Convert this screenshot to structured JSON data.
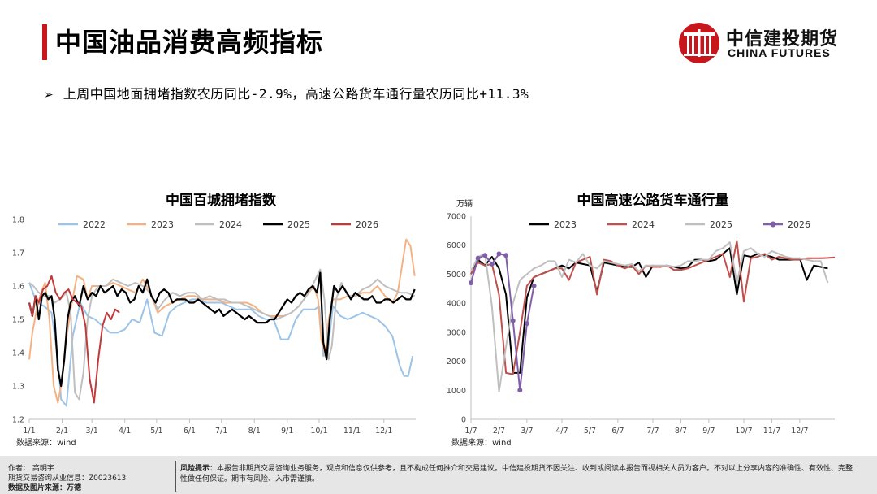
{
  "header": {
    "title": "中国油品消费高频指标"
  },
  "logo": {
    "cn": "中信建投期货",
    "en": "CHINA FUTURES"
  },
  "bullet": {
    "text": "上周中国地面拥堵指数农历同比-2.9%，高速公路货车通行量农历同比+11.3%"
  },
  "footer": {
    "author": "作者：  高明宇",
    "license": "期货交易咨询从业信息：Z0023613",
    "source": "数据及图片来源：万德",
    "risk_label": "风险提示：",
    "risk_text": "本报告非期货交易咨询业务服务，观点和信息仅供参考，且不构成任何推介和交易建议。中信建投期货不因关注、收到或阅读本报告而视相关人员为客户。不对以上分享内容的准确性、有效性、完整性做任何保证。期市有风险、入市需谨慎。"
  },
  "colors": {
    "accent": "#c8161d",
    "s2022": "#9dc3e6",
    "s2023": "#f4b183",
    "s2024": "#bfbfbf",
    "s2025": "#000000",
    "s2026": "#c0393b",
    "purple": "#7f5fa8",
    "red2024": "#c0504d"
  },
  "chart_data": [
    {
      "type": "line",
      "title": "中国百城拥堵指数",
      "source": "数据来源：wind",
      "xlabel": "",
      "ylabel": "",
      "ylim": [
        1.2,
        1.8
      ],
      "yticks": [
        "1.2",
        "1.3",
        "1.4",
        "1.5",
        "1.6",
        "1.7",
        "1.8"
      ],
      "xticks": [
        "1/1",
        "2/1",
        "3/1",
        "4/1",
        "5/1",
        "6/1",
        "7/1",
        "8/1",
        "9/1",
        "10/1",
        "11/1",
        "12/1"
      ],
      "x_unit": "day of year (1-365)",
      "legend_position": "top",
      "series": [
        {
          "name": "2022",
          "color": "#9dc3e6",
          "x": [
            1,
            8,
            15,
            22,
            28,
            31,
            36,
            42,
            49,
            56,
            63,
            70,
            77,
            84,
            91,
            98,
            105,
            112,
            119,
            126,
            133,
            140,
            147,
            154,
            161,
            168,
            175,
            182,
            189,
            196,
            203,
            210,
            217,
            224,
            231,
            238,
            245,
            252,
            259,
            266,
            270,
            274,
            278,
            282,
            287,
            294,
            301,
            308,
            315,
            322,
            329,
            336,
            343,
            350,
            354,
            358,
            362
          ],
          "y": [
            1.61,
            1.55,
            1.54,
            1.52,
            1.38,
            1.26,
            1.24,
            1.45,
            1.55,
            1.51,
            1.5,
            1.48,
            1.46,
            1.46,
            1.47,
            1.5,
            1.49,
            1.56,
            1.46,
            1.45,
            1.52,
            1.54,
            1.55,
            1.56,
            1.56,
            1.55,
            1.55,
            1.55,
            1.54,
            1.53,
            1.53,
            1.53,
            1.51,
            1.5,
            1.5,
            1.44,
            1.44,
            1.5,
            1.53,
            1.53,
            1.53,
            1.54,
            1.39,
            1.4,
            1.54,
            1.51,
            1.5,
            1.51,
            1.52,
            1.51,
            1.5,
            1.48,
            1.45,
            1.36,
            1.33,
            1.33,
            1.39
          ]
        },
        {
          "name": "2023",
          "color": "#f4b183",
          "x": [
            1,
            4,
            8,
            12,
            16,
            20,
            24,
            28,
            31,
            35,
            40,
            46,
            52,
            56,
            60,
            66,
            73,
            80,
            87,
            94,
            101,
            108,
            115,
            122,
            129,
            136,
            143,
            150,
            157,
            164,
            171,
            178,
            185,
            192,
            199,
            206,
            213,
            220,
            227,
            234,
            241,
            248,
            255,
            262,
            269,
            273,
            276,
            280,
            283,
            287,
            294,
            301,
            308,
            315,
            322,
            329,
            336,
            343,
            348,
            352,
            356,
            360,
            364
          ],
          "y": [
            1.38,
            1.46,
            1.53,
            1.58,
            1.61,
            1.5,
            1.3,
            1.25,
            1.3,
            1.42,
            1.53,
            1.63,
            1.62,
            1.56,
            1.6,
            1.6,
            1.6,
            1.61,
            1.6,
            1.59,
            1.58,
            1.62,
            1.58,
            1.52,
            1.54,
            1.55,
            1.56,
            1.57,
            1.57,
            1.56,
            1.56,
            1.56,
            1.55,
            1.55,
            1.55,
            1.55,
            1.54,
            1.52,
            1.51,
            1.51,
            1.51,
            1.52,
            1.54,
            1.57,
            1.6,
            1.56,
            1.44,
            1.39,
            1.5,
            1.56,
            1.56,
            1.57,
            1.57,
            1.58,
            1.58,
            1.6,
            1.57,
            1.55,
            1.58,
            1.66,
            1.74,
            1.72,
            1.63
          ]
        },
        {
          "name": "2024",
          "color": "#bfbfbf",
          "x": [
            1,
            5,
            10,
            15,
            20,
            25,
            30,
            36,
            40,
            44,
            48,
            52,
            56,
            60,
            66,
            73,
            80,
            87,
            94,
            101,
            108,
            115,
            122,
            129,
            136,
            143,
            150,
            157,
            164,
            171,
            178,
            185,
            192,
            199,
            206,
            213,
            220,
            227,
            234,
            241,
            248,
            255,
            262,
            269,
            275,
            279,
            283,
            286,
            290,
            295,
            301,
            308,
            315,
            322,
            329,
            336,
            343,
            350,
            357,
            364
          ],
          "y": [
            1.61,
            1.6,
            1.58,
            1.57,
            1.57,
            1.55,
            1.56,
            1.58,
            1.52,
            1.28,
            1.26,
            1.34,
            1.5,
            1.57,
            1.6,
            1.6,
            1.62,
            1.61,
            1.6,
            1.61,
            1.6,
            1.58,
            1.53,
            1.56,
            1.58,
            1.57,
            1.58,
            1.58,
            1.56,
            1.57,
            1.56,
            1.56,
            1.55,
            1.55,
            1.54,
            1.53,
            1.52,
            1.51,
            1.5,
            1.51,
            1.52,
            1.54,
            1.57,
            1.61,
            1.65,
            1.56,
            1.38,
            1.42,
            1.56,
            1.61,
            1.57,
            1.57,
            1.59,
            1.6,
            1.62,
            1.6,
            1.59,
            1.58,
            1.58,
            1.57
          ]
        },
        {
          "name": "2025",
          "color": "#000000",
          "x": [
            1,
            4,
            7,
            10,
            13,
            16,
            19,
            22,
            25,
            28,
            31,
            34,
            37,
            40,
            44,
            48,
            52,
            56,
            60,
            64,
            68,
            72,
            76,
            80,
            84,
            88,
            92,
            96,
            100,
            104,
            108,
            112,
            116,
            120,
            124,
            128,
            132,
            136,
            140,
            144,
            148,
            152,
            156,
            160,
            164,
            168,
            172,
            176,
            180,
            184,
            188,
            192,
            196,
            200,
            204,
            208,
            212,
            216,
            220,
            224,
            228,
            232,
            236,
            240,
            244,
            248,
            252,
            256,
            260,
            264,
            268,
            272,
            275,
            278,
            281,
            284,
            288,
            292,
            296,
            300,
            304,
            308,
            312,
            316,
            320,
            324,
            328,
            332,
            336,
            340,
            344,
            348,
            352,
            356,
            360,
            364
          ],
          "y": [
            1.55,
            1.51,
            1.57,
            1.5,
            1.57,
            1.58,
            1.56,
            1.57,
            1.5,
            1.35,
            1.3,
            1.38,
            1.5,
            1.55,
            1.57,
            1.54,
            1.6,
            1.56,
            1.58,
            1.57,
            1.6,
            1.58,
            1.59,
            1.6,
            1.57,
            1.59,
            1.58,
            1.55,
            1.56,
            1.6,
            1.58,
            1.62,
            1.57,
            1.55,
            1.58,
            1.59,
            1.58,
            1.55,
            1.56,
            1.56,
            1.56,
            1.55,
            1.55,
            1.56,
            1.55,
            1.54,
            1.53,
            1.52,
            1.53,
            1.51,
            1.52,
            1.53,
            1.52,
            1.51,
            1.5,
            1.51,
            1.5,
            1.49,
            1.49,
            1.49,
            1.5,
            1.5,
            1.52,
            1.54,
            1.56,
            1.55,
            1.57,
            1.58,
            1.57,
            1.59,
            1.6,
            1.58,
            1.64,
            1.43,
            1.38,
            1.5,
            1.6,
            1.58,
            1.6,
            1.58,
            1.56,
            1.58,
            1.57,
            1.56,
            1.56,
            1.57,
            1.55,
            1.55,
            1.56,
            1.56,
            1.55,
            1.56,
            1.57,
            1.56,
            1.56,
            1.59
          ]
        },
        {
          "name": "2026",
          "color": "#c0393b",
          "x": [
            1,
            4,
            7,
            10,
            14,
            18,
            22,
            26,
            30,
            34,
            38,
            42,
            46,
            50,
            54,
            58,
            62,
            66,
            70,
            74,
            78,
            82,
            86
          ],
          "y": [
            1.55,
            1.51,
            1.57,
            1.55,
            1.59,
            1.6,
            1.63,
            1.58,
            1.56,
            1.58,
            1.59,
            1.56,
            1.55,
            1.54,
            1.48,
            1.32,
            1.25,
            1.38,
            1.48,
            1.52,
            1.5,
            1.53,
            1.52
          ]
        }
      ]
    },
    {
      "type": "line",
      "title": "中国高速公路货车通行量",
      "unit": "万辆",
      "source": "数据来源：wind",
      "xlabel": "",
      "ylabel": "",
      "ylim": [
        0,
        7000
      ],
      "yticks": [
        "0",
        "1000",
        "2000",
        "3000",
        "4000",
        "5000",
        "6000",
        "7000"
      ],
      "xticks": [
        "1/7",
        "2/7",
        "3/7",
        "4/7",
        "5/7",
        "6/7",
        "7/7",
        "8/7",
        "9/7",
        "10/7",
        "11/7",
        "12/7"
      ],
      "x_unit": "week index (1-52)",
      "legend_position": "top",
      "series": [
        {
          "name": "2023",
          "color": "#000000",
          "x": [
            1,
            2,
            3,
            4,
            5,
            6,
            7,
            8,
            9,
            10,
            11,
            12,
            13,
            14,
            15,
            16,
            17,
            18,
            19,
            20,
            21,
            22,
            23,
            24,
            25,
            26,
            27,
            28,
            29,
            30,
            31,
            32,
            33,
            34,
            35,
            36,
            37,
            38,
            39,
            40,
            41,
            42,
            43,
            44,
            45,
            46,
            47,
            48,
            49,
            50,
            51,
            52
          ],
          "y": [
            5000,
            5500,
            5300,
            5600,
            5200,
            4300,
            1600,
            1600,
            4200,
            4900,
            5000,
            5100,
            5200,
            5300,
            5200,
            5400,
            5350,
            5300,
            4400,
            5400,
            5350,
            5300,
            5250,
            5250,
            5400,
            4900,
            5300,
            5250,
            5300,
            5250,
            5200,
            5250,
            5500,
            5500,
            5450,
            5500,
            5700,
            5900,
            4300,
            5650,
            5600,
            5700,
            5650,
            5600,
            5500,
            5500,
            5500,
            5550,
            4800,
            5300,
            5250,
            5200
          ]
        },
        {
          "name": "2024",
          "color": "#c0504d",
          "x": [
            1,
            2,
            3,
            4,
            5,
            6,
            7,
            8,
            9,
            10,
            11,
            12,
            13,
            14,
            15,
            16,
            17,
            18,
            19,
            20,
            21,
            22,
            23,
            24,
            25,
            26,
            27,
            28,
            29,
            30,
            31,
            32,
            33,
            34,
            35,
            36,
            37,
            38,
            39,
            40,
            41,
            42,
            43,
            44,
            45,
            46,
            47,
            48,
            49,
            50,
            51,
            52,
            53
          ],
          "y": [
            5000,
            5400,
            5300,
            5350,
            4300,
            1600,
            1550,
            3000,
            4600,
            4900,
            5000,
            5100,
            5200,
            5200,
            4800,
            5400,
            5500,
            5600,
            4300,
            5500,
            5450,
            5300,
            5200,
            5300,
            5000,
            5300,
            5250,
            5250,
            5300,
            5150,
            5150,
            5200,
            5300,
            5400,
            5500,
            5600,
            5700,
            4900,
            6150,
            4050,
            5550,
            5600,
            5700,
            5500,
            5600,
            5550,
            5500,
            5500,
            5550,
            5550,
            5550,
            5560,
            5580
          ]
        },
        {
          "name": "2025",
          "color": "#bfbfbf",
          "x": [
            1,
            2,
            3,
            4,
            5,
            6,
            7,
            8,
            9,
            10,
            11,
            12,
            13,
            14,
            15,
            16,
            17,
            18,
            19,
            20,
            21,
            22,
            23,
            24,
            25,
            26,
            27,
            28,
            29,
            30,
            31,
            32,
            33,
            34,
            35,
            36,
            37,
            38,
            39,
            40,
            41,
            42,
            43,
            44,
            45,
            46,
            47,
            48,
            49,
            50,
            51,
            52
          ],
          "y": [
            5100,
            5600,
            5700,
            3900,
            950,
            2500,
            4000,
            4800,
            5000,
            5200,
            5300,
            5450,
            5450,
            4900,
            5500,
            5400,
            5700,
            5300,
            5200,
            5450,
            5400,
            5350,
            5300,
            5350,
            5100,
            5300,
            5300,
            5300,
            5300,
            5250,
            5300,
            5450,
            5450,
            5500,
            5500,
            5800,
            5900,
            6100,
            4700,
            5800,
            5900,
            5700,
            5600,
            5800,
            5700,
            5600,
            5550,
            5550,
            5500,
            5450,
            5450,
            4700
          ]
        },
        {
          "name": "2026",
          "color": "#7f5fa8",
          "x": [
            1,
            2,
            3,
            4,
            5,
            6,
            7,
            8,
            9,
            10
          ],
          "y": [
            4700,
            5550,
            5650,
            5350,
            5700,
            5650,
            3400,
            1000,
            3300,
            4600
          ]
        }
      ]
    }
  ]
}
